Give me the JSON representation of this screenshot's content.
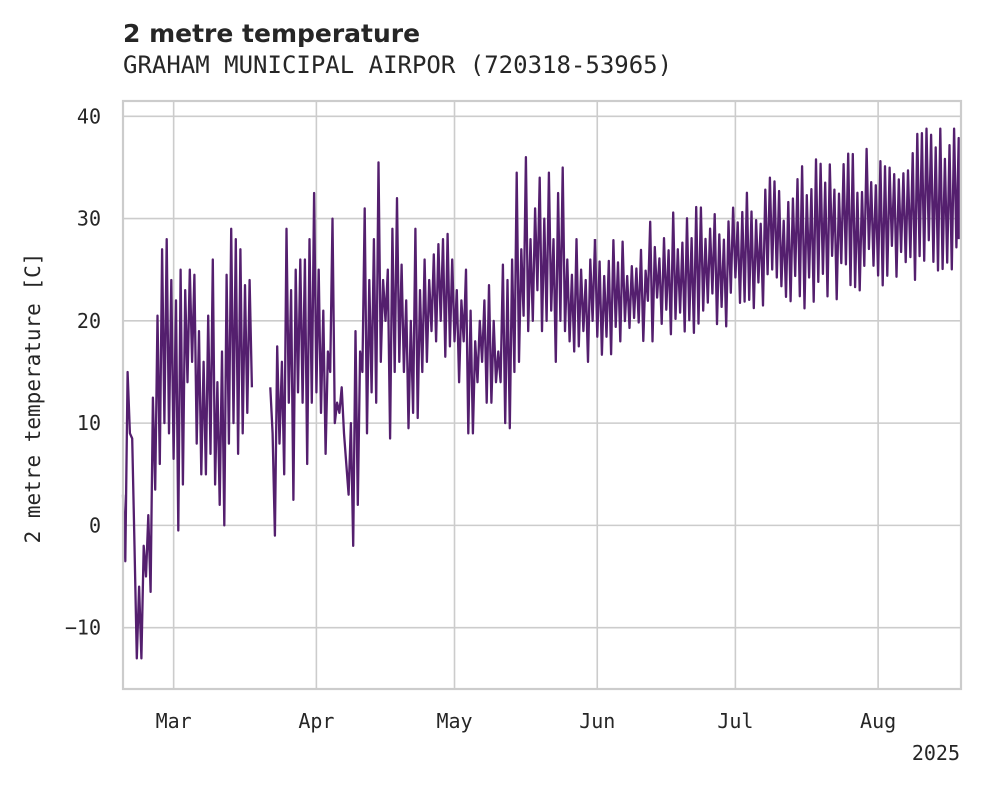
{
  "chart_data": {
    "type": "line",
    "title": "2 metre temperature",
    "subtitle": "GRAHAM MUNICIPAL AIRPOR (720318-53965)",
    "ylabel": "2 metre temperature [C]",
    "xlabel": "",
    "xlim": [
      "2025-02-18",
      "2025-08-19"
    ],
    "ylim": [
      -16,
      41.5
    ],
    "x_ticks": [
      {
        "date": "2025-03-01",
        "label": "Mar"
      },
      {
        "date": "2025-04-01",
        "label": "Apr"
      },
      {
        "date": "2025-05-01",
        "label": "May"
      },
      {
        "date": "2025-06-01",
        "label": "Jun"
      },
      {
        "date": "2025-07-01",
        "label": "Jul"
      },
      {
        "date": "2025-08-01",
        "label": "Aug"
      }
    ],
    "x_offset_label": "2025",
    "y_ticks": [
      -10,
      0,
      10,
      20,
      30,
      40
    ],
    "grid": true,
    "series": [
      {
        "color": "#541f6e",
        "segments": [
          [
            [
              "2025-02-18",
              3.0
            ],
            [
              "2025-02-18T12",
              -3.5
            ],
            [
              "2025-02-19",
              15.0
            ],
            [
              "2025-02-19T12",
              9.0
            ],
            [
              "2025-02-20",
              8.5
            ],
            [
              "2025-02-20T12",
              -2.0
            ],
            [
              "2025-02-21",
              -13.0
            ],
            [
              "2025-02-21T12",
              -6.0
            ],
            [
              "2025-02-22",
              -13.0
            ],
            [
              "2025-02-22T12",
              -2.0
            ],
            [
              "2025-02-23",
              -5.0
            ],
            [
              "2025-02-23T12",
              1.0
            ],
            [
              "2025-02-24",
              -6.5
            ],
            [
              "2025-02-24T12",
              12.5
            ],
            [
              "2025-02-25",
              3.5
            ],
            [
              "2025-02-25T12",
              20.5
            ],
            [
              "2025-02-26",
              6.0
            ],
            [
              "2025-02-26T12",
              27.0
            ],
            [
              "2025-02-27",
              10.0
            ],
            [
              "2025-02-27T12",
              28.0
            ],
            [
              "2025-02-28",
              9.0
            ],
            [
              "2025-02-28T12",
              24.0
            ],
            [
              "2025-03-01",
              6.5
            ],
            [
              "2025-03-01T12",
              22.0
            ],
            [
              "2025-03-02",
              -0.5
            ],
            [
              "2025-03-02T12",
              25.0
            ],
            [
              "2025-03-03",
              4.0
            ],
            [
              "2025-03-03T12",
              23.0
            ],
            [
              "2025-03-04",
              14.0
            ],
            [
              "2025-03-04T12",
              25.0
            ],
            [
              "2025-03-05",
              16.0
            ],
            [
              "2025-03-05T12",
              24.5
            ],
            [
              "2025-03-06",
              8.0
            ],
            [
              "2025-03-06T12",
              19.0
            ],
            [
              "2025-03-07",
              5.0
            ],
            [
              "2025-03-07T12",
              16.0
            ],
            [
              "2025-03-08",
              5.0
            ],
            [
              "2025-03-08T12",
              20.5
            ],
            [
              "2025-03-09",
              7.0
            ],
            [
              "2025-03-09T12",
              26.0
            ],
            [
              "2025-03-10",
              4.0
            ],
            [
              "2025-03-10T12",
              14.0
            ],
            [
              "2025-03-11",
              2.0
            ],
            [
              "2025-03-11T12",
              17.0
            ],
            [
              "2025-03-12",
              0.0
            ],
            [
              "2025-03-12T12",
              24.5
            ],
            [
              "2025-03-13",
              8.0
            ],
            [
              "2025-03-13T12",
              29.0
            ],
            [
              "2025-03-14",
              10.0
            ],
            [
              "2025-03-14T12",
              28.0
            ],
            [
              "2025-03-15",
              7.0
            ],
            [
              "2025-03-15T12",
              27.0
            ],
            [
              "2025-03-16",
              9.0
            ],
            [
              "2025-03-16T12",
              23.5
            ],
            [
              "2025-03-17",
              11.0
            ],
            [
              "2025-03-17T12",
              24.0
            ],
            [
              "2025-03-18",
              13.5
            ]
          ],
          [
            [
              "2025-03-22",
              13.5
            ],
            [
              "2025-03-22T12",
              9.0
            ],
            [
              "2025-03-23",
              -1.0
            ],
            [
              "2025-03-23T12",
              17.5
            ],
            [
              "2025-03-24",
              8.0
            ],
            [
              "2025-03-24T12",
              16.0
            ],
            [
              "2025-03-25",
              5.0
            ],
            [
              "2025-03-25T12",
              29.0
            ],
            [
              "2025-03-26",
              12.0
            ],
            [
              "2025-03-26T12",
              23.0
            ],
            [
              "2025-03-27",
              2.5
            ],
            [
              "2025-03-27T12",
              25.0
            ],
            [
              "2025-03-28",
              13.0
            ],
            [
              "2025-03-28T12",
              26.0
            ],
            [
              "2025-03-29",
              12.0
            ],
            [
              "2025-03-29T12",
              26.0
            ],
            [
              "2025-03-30",
              6.0
            ],
            [
              "2025-03-30T12",
              28.0
            ],
            [
              "2025-03-31",
              12.0
            ],
            [
              "2025-03-31T12",
              32.5
            ],
            [
              "2025-04-01",
              13.0
            ],
            [
              "2025-04-01T12",
              25.0
            ],
            [
              "2025-04-02",
              11.0
            ],
            [
              "2025-04-02T12",
              21.0
            ],
            [
              "2025-04-03",
              7.0
            ],
            [
              "2025-04-03T12",
              17.0
            ],
            [
              "2025-04-04",
              15.0
            ],
            [
              "2025-04-04T12",
              30.0
            ],
            [
              "2025-04-05",
              10.0
            ],
            [
              "2025-04-05T12",
              12.0
            ],
            [
              "2025-04-06",
              11.0
            ],
            [
              "2025-04-06T12",
              13.5
            ],
            [
              "2025-04-07",
              9.0
            ],
            [
              "2025-04-07T12",
              6.0
            ],
            [
              "2025-04-08",
              3.0
            ],
            [
              "2025-04-08T12",
              10.0
            ],
            [
              "2025-04-09",
              -2.0
            ],
            [
              "2025-04-09T12",
              19.0
            ],
            [
              "2025-04-10",
              2.0
            ],
            [
              "2025-04-10T12",
              17.0
            ],
            [
              "2025-04-11",
              15.0
            ],
            [
              "2025-04-11T12",
              31.0
            ],
            [
              "2025-04-12",
              9.0
            ],
            [
              "2025-04-12T12",
              24.0
            ],
            [
              "2025-04-13",
              13.0
            ],
            [
              "2025-04-13T12",
              28.0
            ],
            [
              "2025-04-14",
              12.0
            ],
            [
              "2025-04-14T12",
              35.5
            ],
            [
              "2025-04-15",
              16.0
            ],
            [
              "2025-04-15T12",
              24.0
            ],
            [
              "2025-04-16",
              20.0
            ],
            [
              "2025-04-16T12",
              25.0
            ],
            [
              "2025-04-17",
              8.5
            ],
            [
              "2025-04-17T12",
              29.0
            ],
            [
              "2025-04-18",
              15.0
            ],
            [
              "2025-04-18T12",
              32.0
            ],
            [
              "2025-04-19",
              16.0
            ],
            [
              "2025-04-19T12",
              25.5
            ],
            [
              "2025-04-20",
              15.0
            ],
            [
              "2025-04-20T12",
              22.0
            ],
            [
              "2025-04-21",
              9.5
            ],
            [
              "2025-04-21T12",
              20.0
            ],
            [
              "2025-04-22",
              11.0
            ],
            [
              "2025-04-22T12",
              29.0
            ],
            [
              "2025-04-23",
              10.5
            ],
            [
              "2025-04-23T12",
              23.0
            ],
            [
              "2025-04-24",
              15.0
            ],
            [
              "2025-04-24T12",
              26.0
            ],
            [
              "2025-04-25",
              16.0
            ],
            [
              "2025-04-25T12",
              24.0
            ],
            [
              "2025-04-26",
              19.0
            ],
            [
              "2025-04-26T12",
              26.5
            ],
            [
              "2025-04-27",
              18.0
            ],
            [
              "2025-04-27T12",
              27.5
            ],
            [
              "2025-04-28",
              20.0
            ],
            [
              "2025-04-28T12",
              28.0
            ],
            [
              "2025-04-29",
              16.5
            ],
            [
              "2025-04-29T12",
              28.5
            ],
            [
              "2025-04-30",
              17.5
            ],
            [
              "2025-04-30T12",
              26.0
            ],
            [
              "2025-05-01",
              18.0
            ],
            [
              "2025-05-01T12",
              23.0
            ],
            [
              "2025-05-02",
              14.0
            ],
            [
              "2025-05-02T12",
              22.0
            ],
            [
              "2025-05-03",
              18.0
            ],
            [
              "2025-05-03T12",
              25.0
            ],
            [
              "2025-05-04",
              9.0
            ],
            [
              "2025-05-04T12",
              21.0
            ],
            [
              "2025-05-05",
              9.0
            ],
            [
              "2025-05-05T12",
              18.0
            ],
            [
              "2025-05-06",
              14.0
            ],
            [
              "2025-05-06T12",
              20.0
            ],
            [
              "2025-05-07",
              16.0
            ],
            [
              "2025-05-07T12",
              22.0
            ],
            [
              "2025-05-08",
              12.0
            ],
            [
              "2025-05-08T12",
              23.5
            ],
            [
              "2025-05-09",
              12.0
            ],
            [
              "2025-05-09T12",
              20.0
            ],
            [
              "2025-05-10",
              14.0
            ],
            [
              "2025-05-10T12",
              17.0
            ],
            [
              "2025-05-11",
              14.0
            ],
            [
              "2025-05-11T12",
              25.5
            ],
            [
              "2025-05-12",
              10.0
            ],
            [
              "2025-05-12T12",
              24.0
            ],
            [
              "2025-05-13",
              9.5
            ],
            [
              "2025-05-13T12",
              26.0
            ],
            [
              "2025-05-14",
              15.0
            ],
            [
              "2025-05-14T12",
              34.5
            ],
            [
              "2025-05-15",
              16.0
            ],
            [
              "2025-05-15T12",
              27.0
            ],
            [
              "2025-05-16",
              20.5
            ],
            [
              "2025-05-16T12",
              36.0
            ],
            [
              "2025-05-17",
              19.0
            ],
            [
              "2025-05-17T12",
              28.0
            ],
            [
              "2025-05-18",
              20.0
            ],
            [
              "2025-05-18T12",
              31.0
            ],
            [
              "2025-05-19",
              23.0
            ],
            [
              "2025-05-19T12",
              34.0
            ],
            [
              "2025-05-20",
              19.0
            ],
            [
              "2025-05-20T12",
              30.0
            ],
            [
              "2025-05-21",
              20.0
            ],
            [
              "2025-05-21T12",
              34.5
            ],
            [
              "2025-05-22",
              21.0
            ],
            [
              "2025-05-22T12",
              28.0
            ],
            [
              "2025-05-23",
              16.0
            ],
            [
              "2025-05-23T12",
              32.5
            ],
            [
              "2025-05-24",
              20.0
            ],
            [
              "2025-05-24T12",
              35.0
            ],
            [
              "2025-05-25",
              19.0
            ],
            [
              "2025-05-25T12",
              26.0
            ],
            [
              "2025-05-26",
              18.0
            ],
            [
              "2025-05-26T12",
              24.5
            ],
            [
              "2025-05-27",
              17.0
            ],
            [
              "2025-05-27T12",
              28.0
            ],
            [
              "2025-05-28",
              17.5
            ],
            [
              "2025-05-28T12",
              25.0
            ],
            [
              "2025-05-29",
              19.0
            ],
            [
              "2025-05-29T12",
              24.0
            ],
            [
              "2025-05-30",
              16.0
            ],
            [
              "2025-05-30T12",
              26.0
            ],
            [
              "2025-05-31",
              20.0
            ],
            [
              "2025-05-31T12",
              28.0
            ]
          ]
        ]
      }
    ],
    "summer_envelope": {
      "period": [
        "2025-06-01",
        "2025-08-18"
      ],
      "daily_low_range": [
        18,
        27
      ],
      "daily_high_range": [
        26,
        39
      ],
      "end_value": 28
    }
  }
}
